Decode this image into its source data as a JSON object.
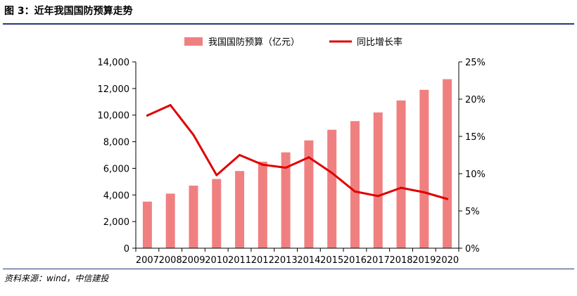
{
  "figure": {
    "title": "图 3：近年我国国防预算走势",
    "source": "资料来源：wind，中信建投"
  },
  "chart_data": {
    "type": "bar",
    "categories": [
      "2007",
      "2008",
      "2009",
      "2010",
      "2011",
      "2012",
      "2013",
      "2014",
      "2015",
      "2016",
      "2017",
      "2018",
      "2019",
      "2020"
    ],
    "series": [
      {
        "name": "我国国防预算（亿元）",
        "type": "bar",
        "axis": "left",
        "color": "#f08080",
        "values": [
          3500,
          4100,
          4700,
          5200,
          5800,
          6500,
          7200,
          8100,
          8900,
          9550,
          10200,
          11100,
          11900,
          12700
        ]
      },
      {
        "name": "同比增长率",
        "type": "line",
        "axis": "right",
        "color": "#e00000",
        "values": [
          17.8,
          19.2,
          15.2,
          9.8,
          12.5,
          11.2,
          10.8,
          12.2,
          10.1,
          7.6,
          7.0,
          8.1,
          7.5,
          6.6
        ]
      }
    ],
    "ylim_left": [
      0,
      14000
    ],
    "yticks_left": [
      "0",
      "2,000",
      "4,000",
      "6,000",
      "8,000",
      "10,000",
      "12,000",
      "14,000"
    ],
    "ylim_right": [
      0,
      25
    ],
    "yticks_right": [
      "0%",
      "5%",
      "10%",
      "15%",
      "20%",
      "25%"
    ],
    "grid": false,
    "legend_position": "top"
  }
}
